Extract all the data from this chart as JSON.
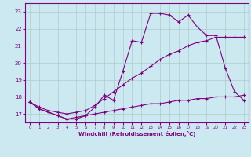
{
  "xlabel": "Windchill (Refroidissement éolien,°C)",
  "background_color": "#cce8f0",
  "line_color": "#800080",
  "grid_color": "#aacccc",
  "xlim": [
    -0.5,
    23.5
  ],
  "ylim": [
    16.5,
    23.5
  ],
  "yticks": [
    17,
    18,
    19,
    20,
    21,
    22,
    23
  ],
  "xticks": [
    0,
    1,
    2,
    3,
    4,
    5,
    6,
    7,
    8,
    9,
    10,
    11,
    12,
    13,
    14,
    15,
    16,
    17,
    18,
    19,
    20,
    21,
    22,
    23
  ],
  "series": [
    {
      "x": [
        0,
        1,
        2,
        3,
        4,
        5,
        6,
        7,
        8,
        9,
        10,
        11,
        12,
        13,
        14,
        15,
        16,
        17,
        18,
        19,
        20,
        21,
        22,
        23
      ],
      "y": [
        17.7,
        17.3,
        17.1,
        16.9,
        16.7,
        16.7,
        16.9,
        17.4,
        18.1,
        17.8,
        19.5,
        21.3,
        21.2,
        22.9,
        22.9,
        22.8,
        22.4,
        22.8,
        22.1,
        21.6,
        21.6,
        19.7,
        18.3,
        17.8
      ]
    },
    {
      "x": [
        0,
        1,
        2,
        3,
        4,
        5,
        6,
        7,
        8,
        9,
        10,
        11,
        12,
        13,
        14,
        15,
        16,
        17,
        18,
        19,
        20,
        21,
        22,
        23
      ],
      "y": [
        17.7,
        17.4,
        17.2,
        17.1,
        17.0,
        17.1,
        17.2,
        17.5,
        17.9,
        18.3,
        18.7,
        19.1,
        19.4,
        19.8,
        20.2,
        20.5,
        20.7,
        21.0,
        21.2,
        21.3,
        21.5,
        21.5,
        21.5,
        21.5
      ]
    },
    {
      "x": [
        0,
        1,
        2,
        3,
        4,
        5,
        6,
        7,
        8,
        9,
        10,
        11,
        12,
        13,
        14,
        15,
        16,
        17,
        18,
        19,
        20,
        21,
        22,
        23
      ],
      "y": [
        17.7,
        17.3,
        17.1,
        16.9,
        16.7,
        16.8,
        16.9,
        17.0,
        17.1,
        17.2,
        17.3,
        17.4,
        17.5,
        17.6,
        17.6,
        17.7,
        17.8,
        17.8,
        17.9,
        17.9,
        18.0,
        18.0,
        18.0,
        18.1
      ]
    }
  ]
}
